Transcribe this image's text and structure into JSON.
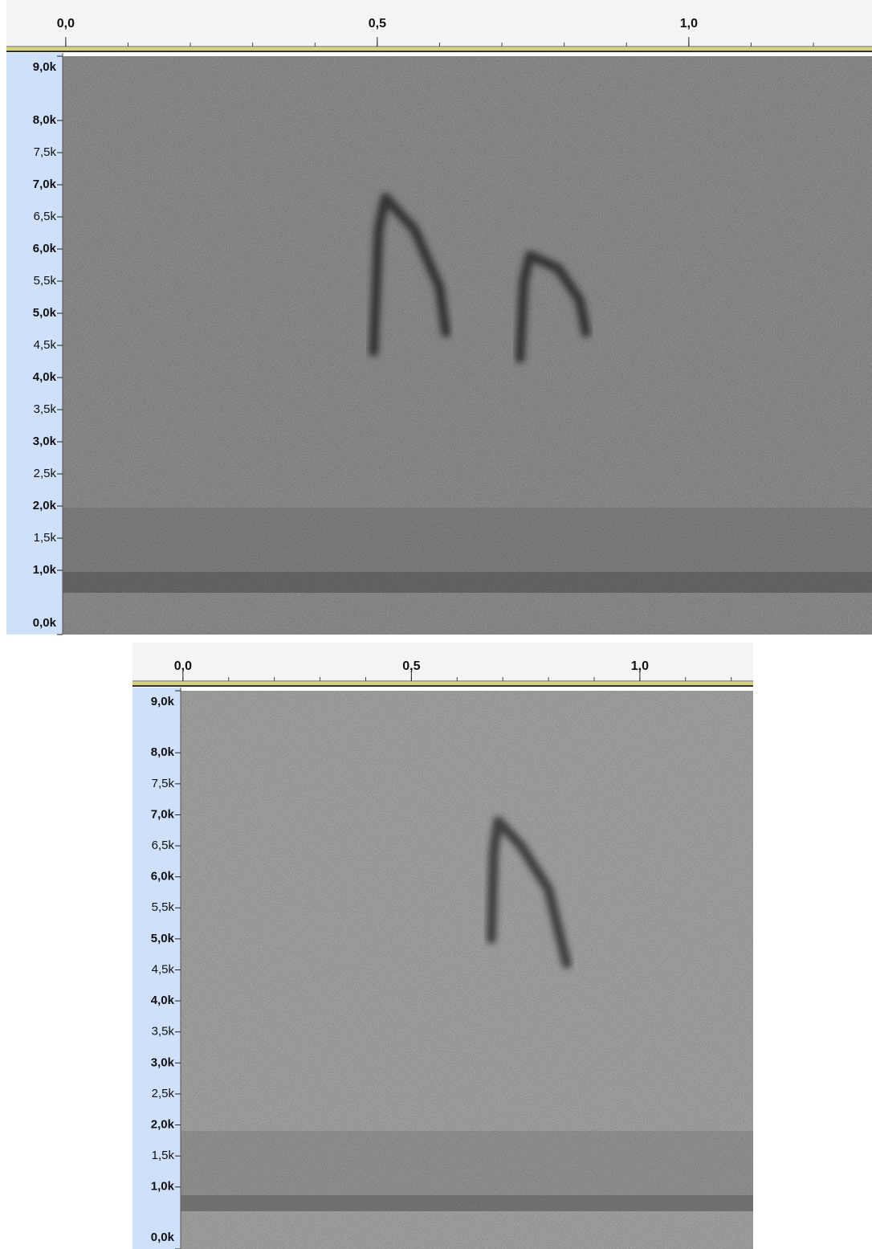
{
  "chart_data": [
    {
      "type": "spectrogram",
      "background": "#6c6c6c",
      "trace_color": "#262626",
      "xlim": [
        -0.005,
        1.294
      ],
      "ylim": [
        0,
        9000
      ],
      "xticks": [
        {
          "value": 0,
          "label": "0,0"
        },
        {
          "value": 0.5,
          "label": "0,5"
        },
        {
          "value": 1,
          "label": "1,0"
        }
      ],
      "yticks": [
        {
          "value": 9000,
          "label": "9,0k"
        },
        {
          "value": 8000,
          "label": "8,0k"
        },
        {
          "value": 7500,
          "label": "7,5k"
        },
        {
          "value": 7000,
          "label": "7,0k"
        },
        {
          "value": 6500,
          "label": "6,5k"
        },
        {
          "value": 6000,
          "label": "6,0k"
        },
        {
          "value": 5500,
          "label": "5,5k"
        },
        {
          "value": 5000,
          "label": "5,0k"
        },
        {
          "value": 4500,
          "label": "4,5k"
        },
        {
          "value": 4000,
          "label": "4,0k"
        },
        {
          "value": 3500,
          "label": "3,5k"
        },
        {
          "value": 3000,
          "label": "3,0k"
        },
        {
          "value": 2500,
          "label": "2,5k"
        },
        {
          "value": 2000,
          "label": "2,0k"
        },
        {
          "value": 1500,
          "label": "1,5k"
        },
        {
          "value": 1000,
          "label": "1,0k"
        },
        {
          "value": 0,
          "label": "0,0k"
        }
      ],
      "traces": [
        {
          "x": [
            0.494,
            0.502,
            0.513,
            0.56,
            0.6,
            0.61
          ],
          "y": [
            4400,
            6300,
            6800,
            6300,
            5400,
            4700
          ]
        },
        {
          "x": [
            0.729,
            0.735,
            0.745,
            0.79,
            0.825,
            0.835
          ],
          "y": [
            4300,
            5500,
            5900,
            5700,
            5200,
            4700
          ]
        }
      ]
    },
    {
      "type": "spectrogram",
      "background": "#8a8a8a",
      "trace_color": "#2e2e2e",
      "xlim": [
        -0.005,
        1.248
      ],
      "ylim": [
        0,
        9000
      ],
      "xticks": [
        {
          "value": 0,
          "label": "0,0"
        },
        {
          "value": 0.5,
          "label": "0,5"
        },
        {
          "value": 1,
          "label": "1,0"
        }
      ],
      "yticks": [
        {
          "value": 9000,
          "label": "9,0k"
        },
        {
          "value": 8000,
          "label": "8,0k"
        },
        {
          "value": 7500,
          "label": "7,5k"
        },
        {
          "value": 7000,
          "label": "7,0k"
        },
        {
          "value": 6500,
          "label": "6,5k"
        },
        {
          "value": 6000,
          "label": "6,0k"
        },
        {
          "value": 5500,
          "label": "5,5k"
        },
        {
          "value": 5000,
          "label": "5,0k"
        },
        {
          "value": 4500,
          "label": "4,5k"
        },
        {
          "value": 4000,
          "label": "4,0k"
        },
        {
          "value": 3500,
          "label": "3,5k"
        },
        {
          "value": 3000,
          "label": "3,0k"
        },
        {
          "value": 2500,
          "label": "2,5k"
        },
        {
          "value": 2000,
          "label": "2,0k"
        },
        {
          "value": 1500,
          "label": "1,5k"
        },
        {
          "value": 1000,
          "label": "1,0k"
        },
        {
          "value": 0,
          "label": "0,0k"
        }
      ],
      "traces": [
        {
          "x": [
            0.675,
            0.68,
            0.69,
            0.74,
            0.8,
            0.84
          ],
          "y": [
            5000,
            6400,
            6900,
            6500,
            5800,
            4600
          ]
        }
      ]
    }
  ]
}
